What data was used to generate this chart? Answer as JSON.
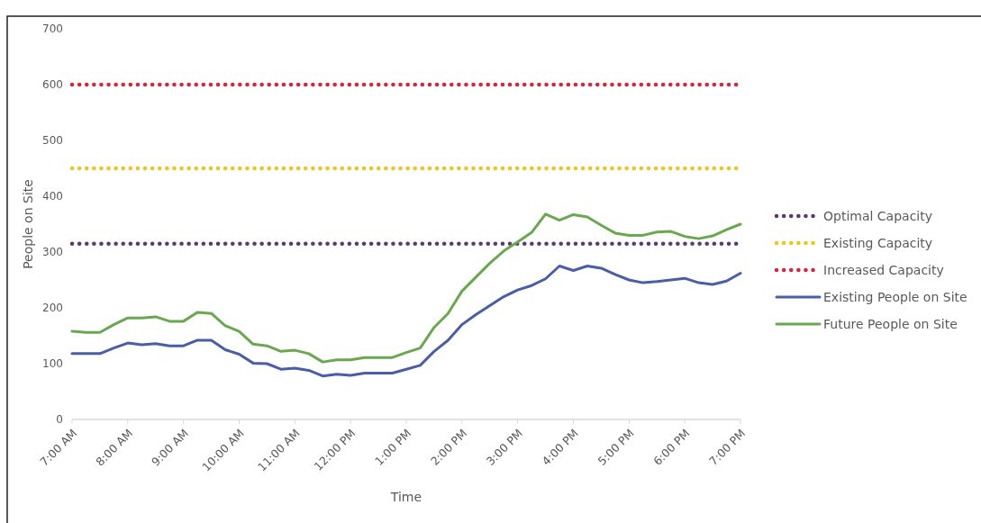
{
  "chart_data": {
    "type": "line",
    "xlabel": "Time",
    "ylabel": "People on Site",
    "x": [
      7,
      7.25,
      7.5,
      7.75,
      8,
      8.25,
      8.5,
      8.75,
      9,
      9.25,
      9.5,
      9.75,
      10,
      10.25,
      10.5,
      10.75,
      11,
      11.25,
      11.5,
      11.75,
      12,
      12.25,
      12.5,
      12.75,
      13,
      13.25,
      13.5,
      13.75,
      14,
      14.25,
      14.5,
      14.75,
      15,
      15.25,
      15.5,
      15.75,
      16,
      16.25,
      16.5,
      16.75,
      17,
      17.25,
      17.5,
      17.75,
      18,
      18.25,
      18.5,
      18.75,
      19
    ],
    "series": [
      {
        "name": "Existing People on Site",
        "color": "#4a5ea8",
        "values": [
          118,
          118,
          118,
          128,
          137,
          134,
          136,
          132,
          132,
          142,
          142,
          125,
          117,
          101,
          100,
          90,
          92,
          88,
          78,
          81,
          79,
          83,
          83,
          83,
          90,
          97,
          122,
          142,
          170,
          188,
          204,
          220,
          232,
          240,
          252,
          275,
          267,
          275,
          271,
          260,
          250,
          245,
          247,
          250,
          253,
          245,
          242,
          248,
          262
        ]
      },
      {
        "name": "Future People on Site",
        "color": "#6aa84f",
        "values": [
          158,
          156,
          156,
          170,
          182,
          182,
          184,
          176,
          176,
          192,
          190,
          168,
          158,
          135,
          132,
          122,
          124,
          118,
          103,
          107,
          107,
          111,
          111,
          111,
          120,
          128,
          165,
          190,
          230,
          255,
          280,
          302,
          318,
          335,
          368,
          357,
          367,
          363,
          348,
          334,
          330,
          330,
          336,
          337,
          328,
          324,
          329,
          340,
          350
        ]
      }
    ],
    "ref_lines": [
      {
        "axis": "y",
        "value": 315,
        "label": "Optimal Capacity",
        "color": "#5b3a73",
        "line_style": "dotted"
      },
      {
        "axis": "y",
        "value": 450,
        "label": "Existing Capacity",
        "color": "#f0c419",
        "line_style": "dotted"
      },
      {
        "axis": "y",
        "value": 600,
        "label": "Increased Capacity",
        "color": "#d7263d",
        "line_style": "dotted"
      }
    ],
    "xlim": [
      7,
      19
    ],
    "xticks": [
      {
        "value": 7,
        "label": "7:00 AM"
      },
      {
        "value": 8,
        "label": "8:00 AM"
      },
      {
        "value": 9,
        "label": "9:00 AM"
      },
      {
        "value": 10,
        "label": "10:00 AM"
      },
      {
        "value": 11,
        "label": "11:00 AM"
      },
      {
        "value": 12,
        "label": "12:00 PM"
      },
      {
        "value": 13,
        "label": "1:00 PM"
      },
      {
        "value": 14,
        "label": "2:00 PM"
      },
      {
        "value": 15,
        "label": "3:00 PM"
      },
      {
        "value": 16,
        "label": "4:00 PM"
      },
      {
        "value": 17,
        "label": "5:00 PM"
      },
      {
        "value": 18,
        "label": "6:00 PM"
      },
      {
        "value": 19,
        "label": "7:00 PM"
      }
    ],
    "ylim": [
      0,
      700
    ],
    "yticks": [
      0,
      100,
      200,
      300,
      400,
      500,
      600,
      700
    ],
    "grid": false,
    "legend": "right",
    "line_style": "solid",
    "marker": "none"
  }
}
